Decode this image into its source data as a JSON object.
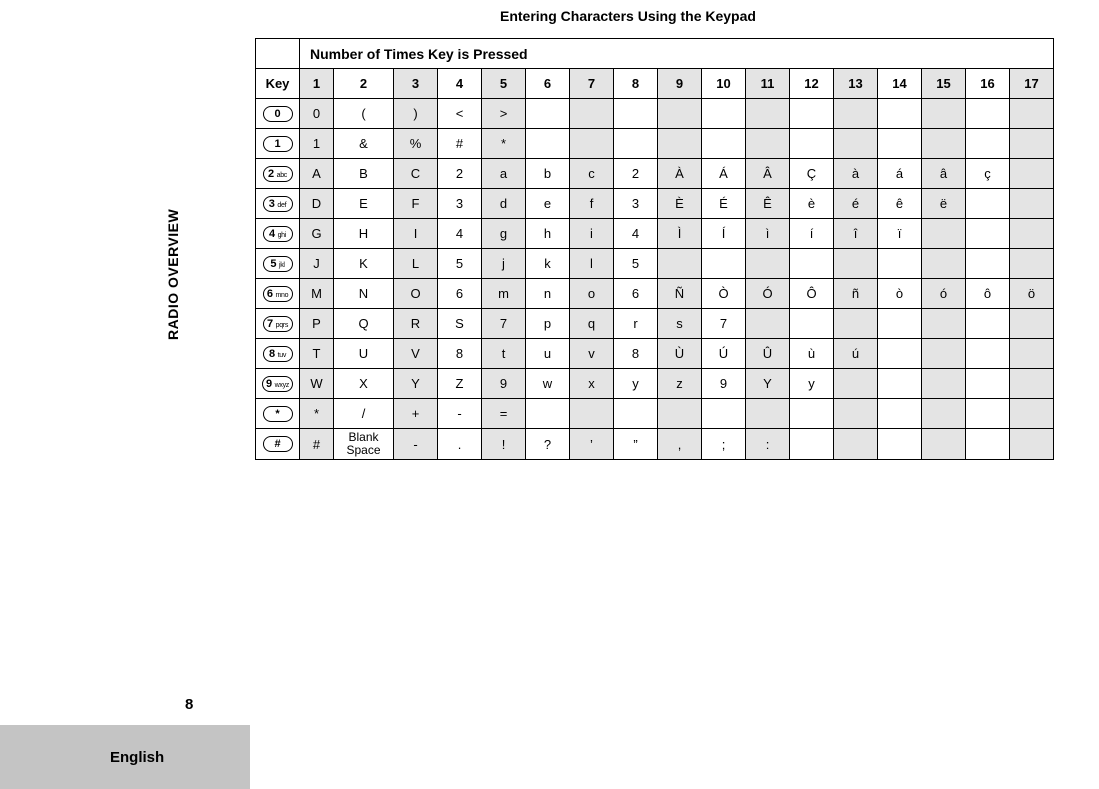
{
  "title": "Entering Characters Using the Keypad",
  "sidebar_label": "RADIO OVERVIEW",
  "page_number": "8",
  "footer_language": "English",
  "colors": {
    "shade": "#e4e4e4",
    "border": "#000000",
    "background": "#ffffff",
    "footer_bg": "#c4c4c4"
  },
  "fonts": {
    "title_size": 14,
    "header_size": 14,
    "cell_size": 13,
    "key_label_size": 9
  },
  "header_row_label": "Number of Times Key is Pressed",
  "key_header": "Key",
  "press_counts": [
    "1",
    "2",
    "3",
    "4",
    "5",
    "6",
    "7",
    "8",
    "9",
    "10",
    "11",
    "12",
    "13",
    "14",
    "15",
    "16",
    "17"
  ],
  "shaded_columns": [
    1,
    3,
    5,
    7,
    9,
    11,
    13,
    15,
    17
  ],
  "column_widths": {
    "key": 44,
    "col1": 34,
    "col2": 60,
    "default": 44
  },
  "keys": [
    {
      "num": "0",
      "letters": ""
    },
    {
      "num": "1",
      "letters": ""
    },
    {
      "num": "2",
      "letters": "abc"
    },
    {
      "num": "3",
      "letters": "def"
    },
    {
      "num": "4",
      "letters": "ghi"
    },
    {
      "num": "5",
      "letters": "jkl"
    },
    {
      "num": "6",
      "letters": "mno"
    },
    {
      "num": "7",
      "letters": "pqrs"
    },
    {
      "num": "8",
      "letters": "tuv"
    },
    {
      "num": "9",
      "letters": "wxyz"
    },
    {
      "num": "*",
      "letters": ""
    },
    {
      "num": "#",
      "letters": ""
    }
  ],
  "rows": [
    [
      "0",
      "(",
      ")",
      "<",
      ">",
      "",
      "",
      "",
      "",
      "",
      "",
      "",
      "",
      "",
      "",
      "",
      ""
    ],
    [
      "1",
      "&",
      "%",
      "#",
      "*",
      "",
      "",
      "",
      "",
      "",
      "",
      "",
      "",
      "",
      "",
      "",
      ""
    ],
    [
      "A",
      "B",
      "C",
      "2",
      "a",
      "b",
      "c",
      "2",
      "À",
      "Á",
      "Â",
      "Ç",
      "à",
      "á",
      "â",
      "ç",
      ""
    ],
    [
      "D",
      "E",
      "F",
      "3",
      "d",
      "e",
      "f",
      "3",
      "È",
      "É",
      "Ê",
      "è",
      "é",
      "ê",
      "ë",
      "",
      ""
    ],
    [
      "G",
      "H",
      "I",
      "4",
      "g",
      "h",
      "i",
      "4",
      "Ì",
      "Í",
      "ì",
      "í",
      "î",
      "ï",
      "",
      "",
      ""
    ],
    [
      "J",
      "K",
      "L",
      "5",
      "j",
      "k",
      "l",
      "5",
      "",
      "",
      "",
      "",
      "",
      "",
      "",
      "",
      ""
    ],
    [
      "M",
      "N",
      "O",
      "6",
      "m",
      "n",
      "o",
      "6",
      "Ñ",
      "Ò",
      "Ó",
      "Ô",
      "ñ",
      "ò",
      "ó",
      "ô",
      "ö"
    ],
    [
      "P",
      "Q",
      "R",
      "S",
      "7",
      "p",
      "q",
      "r",
      "s",
      "7",
      "",
      "",
      "",
      "",
      "",
      "",
      ""
    ],
    [
      "T",
      "U",
      "V",
      "8",
      "t",
      "u",
      "v",
      "8",
      "Ù",
      "Ú",
      "Û",
      "ù",
      "ú",
      "",
      "",
      "",
      ""
    ],
    [
      "W",
      "X",
      "Y",
      "Z",
      "9",
      "w",
      "x",
      "y",
      "z",
      "9",
      "Y",
      "y",
      "",
      "",
      "",
      "",
      ""
    ],
    [
      "*",
      "/",
      "+",
      "-",
      "=",
      "",
      "",
      "",
      "",
      "",
      "",
      "",
      "",
      "",
      "",
      "",
      ""
    ],
    [
      "#",
      "Blank Space",
      "-",
      ".",
      "!",
      "?",
      "’",
      "”",
      ",",
      ";",
      ":",
      "",
      "",
      "",
      "",
      "",
      ""
    ]
  ]
}
